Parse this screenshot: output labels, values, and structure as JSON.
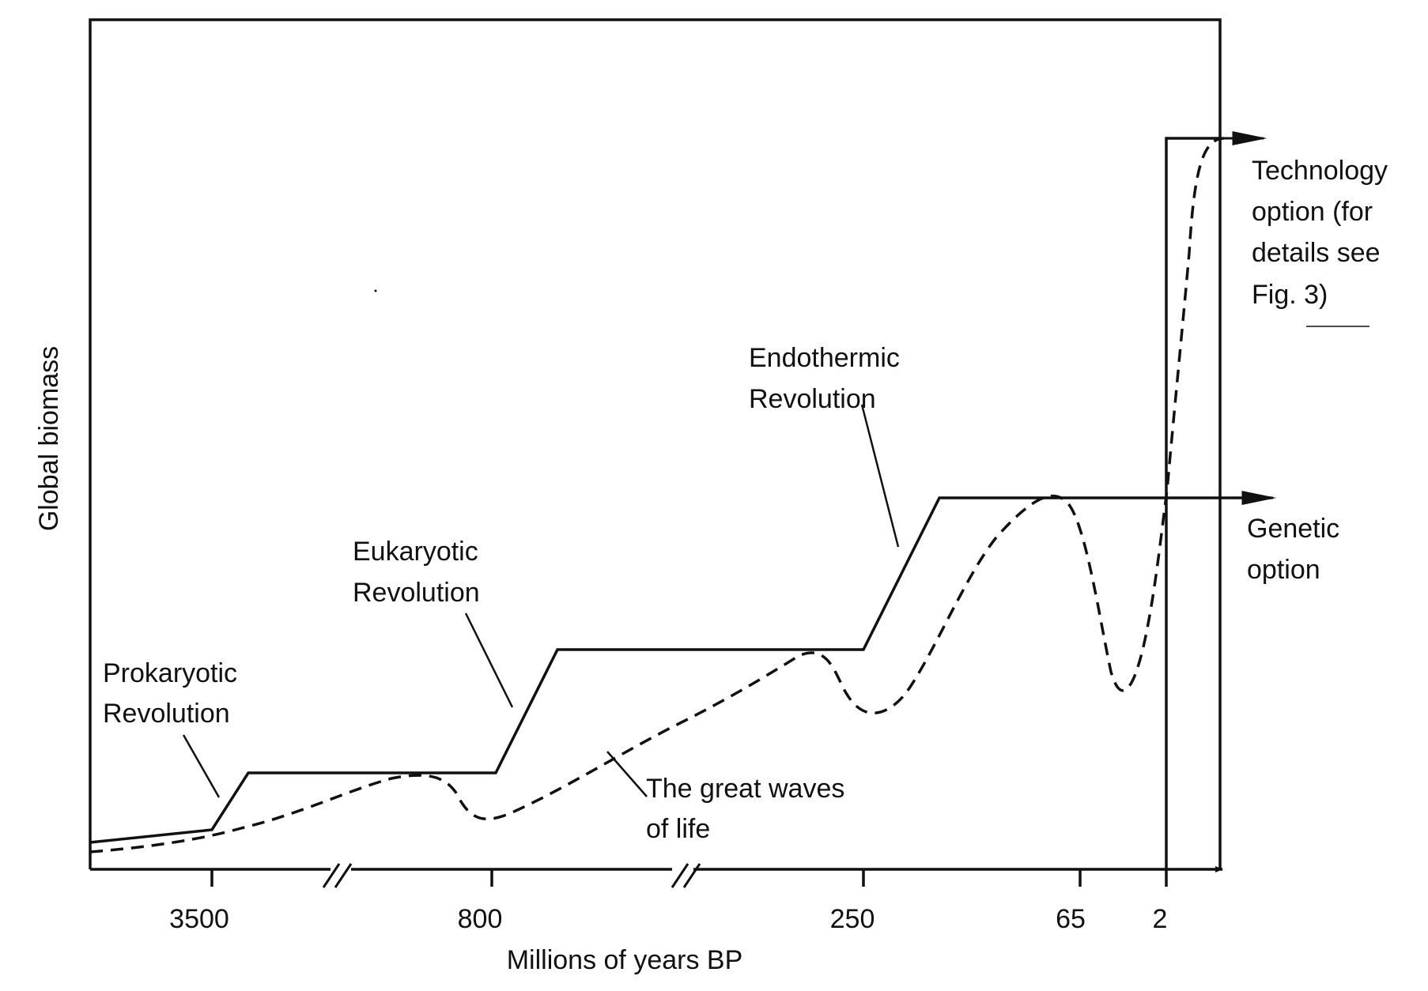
{
  "figure": {
    "y_axis_label": "Global biomass",
    "x_axis_label": "Millions of years BP",
    "x_ticks": [
      "3500",
      "800",
      "250",
      "65",
      "2"
    ],
    "annotations": {
      "prokaryotic": [
        "Prokaryotic",
        "Revolution"
      ],
      "eukaryotic": [
        "Eukaryotic",
        "Revolution"
      ],
      "endothermic": [
        "Endothermic",
        "Revolution"
      ],
      "waves": [
        "The great waves",
        "of life"
      ],
      "genetic": [
        "Genetic",
        "option"
      ],
      "technology": [
        "Technology",
        "option (for",
        "details see",
        "Fig.  3)"
      ]
    },
    "colors": {
      "ink": "#111111",
      "background": "#ffffff"
    }
  }
}
